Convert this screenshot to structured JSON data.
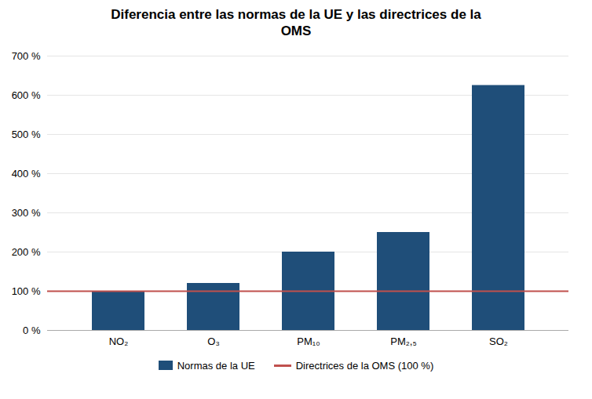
{
  "chart_data": {
    "type": "bar",
    "title": "Diferencia entre las normas de la UE y las directrices de la\nOMS",
    "categories": [
      "NO₂",
      "O₃",
      "PM₁₀",
      "PM₂,₅",
      "SO₂"
    ],
    "series": [
      {
        "name": "Normas de la UE",
        "type": "bar",
        "color": "#1F4E79",
        "values": [
          100,
          120,
          200,
          250,
          625
        ]
      },
      {
        "name": "Directrices de la OMS (100 %)",
        "type": "rule",
        "color": "#C0504D",
        "value": 100
      }
    ],
    "ylim": [
      0,
      700
    ],
    "yticks": [
      {
        "value": 0,
        "label": "0 %"
      },
      {
        "value": 100,
        "label": "100 %"
      },
      {
        "value": 200,
        "label": "200 %"
      },
      {
        "value": 300,
        "label": "300 %"
      },
      {
        "value": 400,
        "label": "400 %"
      },
      {
        "value": 500,
        "label": "500 %"
      },
      {
        "value": 600,
        "label": "600 %"
      },
      {
        "value": 700,
        "label": "700 %"
      }
    ],
    "grid": true,
    "legend": "bottom"
  }
}
